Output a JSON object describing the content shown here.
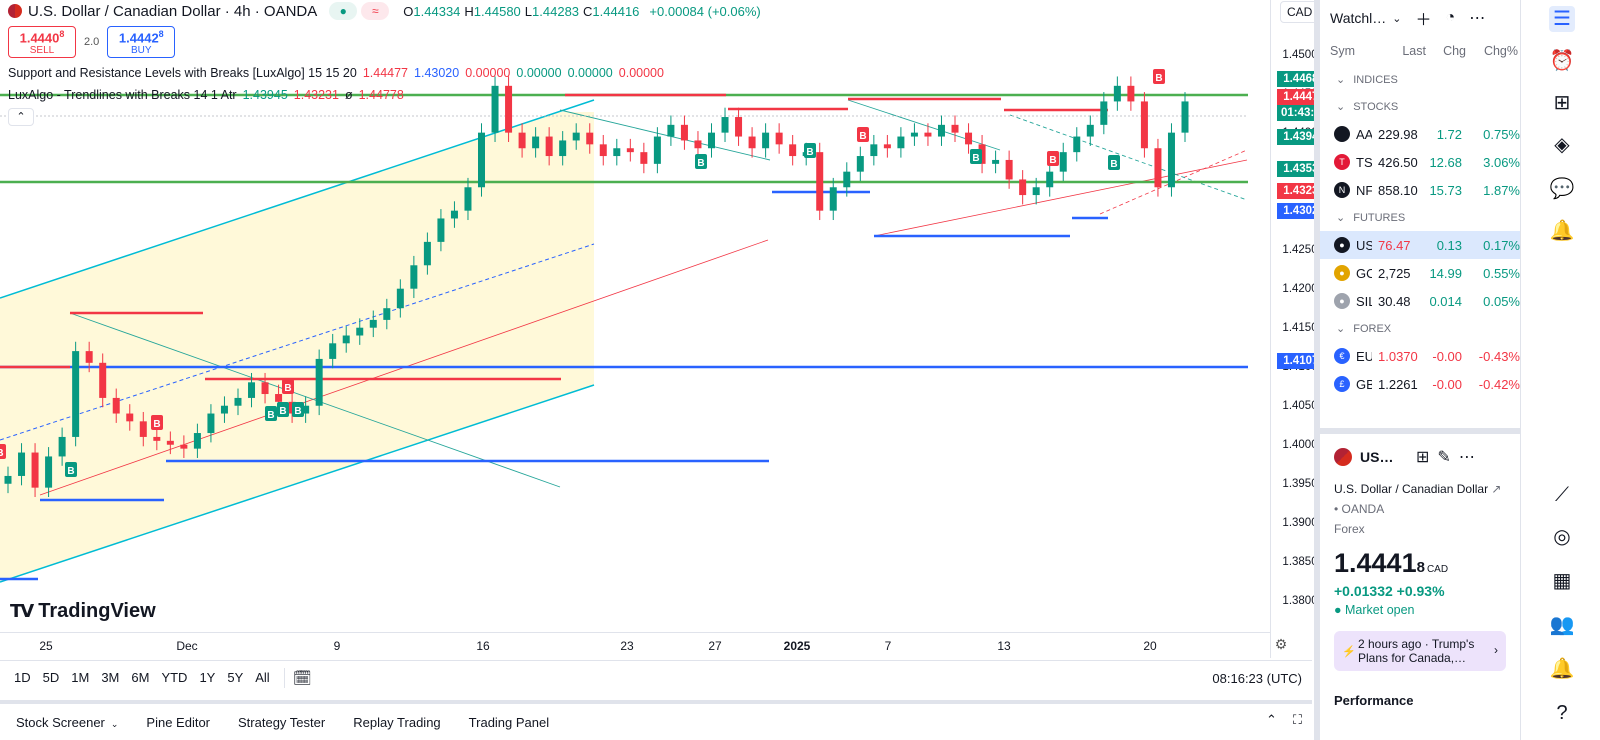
{
  "header": {
    "symbol_title": "U.S. Dollar / Canadian Dollar · 4h · OANDA",
    "ohlc": [
      {
        "k": "O",
        "v": "1.44334"
      },
      {
        "k": "H",
        "v": "1.44580"
      },
      {
        "k": "L",
        "v": "1.44283"
      },
      {
        "k": "C",
        "v": "1.44416"
      }
    ],
    "change": "+0.00084 (+0.06%)",
    "currency": "CAD"
  },
  "trade": {
    "sell_price": "1.4440",
    "sell_sup": "8",
    "sell_label": "SELL",
    "spread": "2.0",
    "buy_price": "1.4442",
    "buy_sup": "8",
    "buy_label": "BUY"
  },
  "indicators": [
    {
      "name": "Support and Resistance Levels with Breaks [LuxAlgo] 15 15 20",
      "values": [
        {
          "v": "1.44477",
          "color": "#f23645"
        },
        {
          "v": "1.43020",
          "color": "#2962ff"
        },
        {
          "v": "0.00000",
          "color": "#f23645"
        },
        {
          "v": "0.00000",
          "color": "#089981"
        },
        {
          "v": "0.00000",
          "color": "#089981"
        },
        {
          "v": "0.00000",
          "color": "#f23645"
        }
      ]
    },
    {
      "name": "LuxAlgo - Trendlines with Breaks 14 1 Atr",
      "values": [
        {
          "v": "1.43945",
          "color": "#089981"
        },
        {
          "v": "1.43231",
          "color": "#f23645"
        },
        {
          "v": "ø",
          "color": "#131722"
        },
        {
          "v": "1.44778",
          "color": "#f23645"
        }
      ]
    }
  ],
  "logo_text": "TradingView",
  "price_scale": {
    "ticks": [
      "1.45500",
      "1.45000",
      "1.44500",
      "1.44000",
      "1.43500",
      "1.43000",
      "1.42500",
      "1.42000",
      "1.41500",
      "1.41000",
      "1.40500",
      "1.40000",
      "1.39500",
      "1.39000",
      "1.38500",
      "1.38000"
    ],
    "tags": [
      {
        "label": "1.44686",
        "color": "#089981"
      },
      {
        "label": "1.44477",
        "color": "#f23645"
      },
      {
        "label": "01:43:37",
        "color": "#089981"
      },
      {
        "label": "1.43945",
        "color": "#089981"
      },
      {
        "label": "1.43534",
        "color": "#089981"
      },
      {
        "label": "1.43231",
        "color": "#f23645"
      },
      {
        "label": "1.43020",
        "color": "#2962ff"
      },
      {
        "label": "1.41075",
        "color": "#2962ff"
      }
    ]
  },
  "time_axis": [
    "25",
    "Dec",
    "9",
    "16",
    "23",
    "27",
    "2025",
    "7",
    "13",
    "20"
  ],
  "range_buttons": [
    "1D",
    "5D",
    "1M",
    "3M",
    "6M",
    "YTD",
    "1Y",
    "5Y",
    "All"
  ],
  "clock": "08:16:23 (UTC)",
  "bottom_tabs": [
    "Stock Screener",
    "Pine Editor",
    "Strategy Tester",
    "Replay Trading",
    "Trading Panel"
  ],
  "watchlist": {
    "title": "Watchl…",
    "columns": [
      "Sym",
      "Last",
      "Chg",
      "Chg%"
    ],
    "sections": [
      {
        "name": "INDICES",
        "rows": []
      },
      {
        "name": "STOCKS",
        "rows": [
          {
            "sym": "AAPL",
            "last": "229.98",
            "chg": "1.72",
            "chgp": "0.75%",
            "dir": "pos",
            "icon_color": "#131722",
            "icon": ""
          },
          {
            "sym": "TSLA",
            "last": "426.50",
            "chg": "12.68",
            "chgp": "3.06%",
            "dir": "pos",
            "icon_color": "#e31937",
            "icon": "T"
          },
          {
            "sym": "NFLX",
            "last": "858.10",
            "chg": "15.73",
            "chgp": "1.87%",
            "dir": "pos",
            "icon_color": "#131722",
            "icon": "N"
          }
        ]
      },
      {
        "name": "FUTURES",
        "rows": [
          {
            "sym": "USOIL",
            "last": "76.47",
            "chg": "0.13",
            "chgp": "0.17%",
            "dir": "pos",
            "icon_color": "#131722",
            "icon": "●",
            "selected": true,
            "last_neg": true
          },
          {
            "sym": "GOLD",
            "last": "2,725",
            "chg": "14.99",
            "chgp": "0.55%",
            "dir": "pos",
            "icon_color": "#e2a400",
            "icon": "●"
          },
          {
            "sym": "SILVER",
            "last": "30.48",
            "chg": "0.014",
            "chgp": "0.05%",
            "dir": "pos",
            "icon_color": "#9ea3ad",
            "icon": "●"
          }
        ]
      },
      {
        "name": "FOREX",
        "rows": [
          {
            "sym": "EURUSD",
            "last": "1.0370",
            "chg": "-0.00",
            "chgp": "-0.43%",
            "dir": "neg",
            "icon_color": "#2962ff",
            "icon": "€",
            "last_neg": true
          },
          {
            "sym": "GBPUSD",
            "last": "1.2261",
            "chg": "-0.00",
            "chgp": "-0.42%",
            "dir": "neg",
            "icon_color": "#2962ff",
            "icon": "£"
          }
        ]
      }
    ]
  },
  "details": {
    "sym": "US…",
    "name": "U.S. Dollar / Canadian Dollar",
    "broker": "• OANDA",
    "type": "Forex",
    "price_main": "1.4441",
    "price_sup": "8",
    "price_cur": "CAD",
    "change": "+0.01332  +0.93%",
    "market": "● Market open",
    "news": "2 hours ago · Trump's Plans for Canada,…",
    "perf_title": "Performance"
  },
  "chart_data": {
    "type": "candlestick",
    "ylim": [
      1.376,
      1.457
    ],
    "time_labels": [
      "25",
      "Dec",
      "9",
      "16",
      "23",
      "27",
      "2025",
      "7",
      "13",
      "20"
    ],
    "close_series": [
      1.396,
      1.399,
      1.3945,
      1.3985,
      1.401,
      1.412,
      1.4105,
      1.406,
      1.404,
      1.403,
      1.401,
      1.4005,
      1.4,
      1.3995,
      1.4015,
      1.404,
      1.405,
      1.406,
      1.408,
      1.4065,
      1.4055,
      1.404,
      1.405,
      1.411,
      1.413,
      1.414,
      1.415,
      1.416,
      1.4175,
      1.42,
      1.423,
      1.426,
      1.429,
      1.43,
      1.433,
      1.44,
      1.446,
      1.44,
      1.438,
      1.4395,
      1.437,
      1.439,
      1.44,
      1.4385,
      1.437,
      1.438,
      1.4375,
      1.436,
      1.4395,
      1.441,
      1.439,
      1.438,
      1.44,
      1.442,
      1.4395,
      1.438,
      1.44,
      1.4385,
      1.437,
      1.4375,
      1.43,
      1.433,
      1.435,
      1.437,
      1.4385,
      1.438,
      1.4395,
      1.44,
      1.4395,
      1.441,
      1.44,
      1.4385,
      1.436,
      1.4365,
      1.434,
      1.432,
      1.433,
      1.435,
      1.4375,
      1.4395,
      1.441,
      1.444,
      1.446,
      1.444,
      1.438,
      1.433,
      1.44,
      1.444
    ]
  }
}
